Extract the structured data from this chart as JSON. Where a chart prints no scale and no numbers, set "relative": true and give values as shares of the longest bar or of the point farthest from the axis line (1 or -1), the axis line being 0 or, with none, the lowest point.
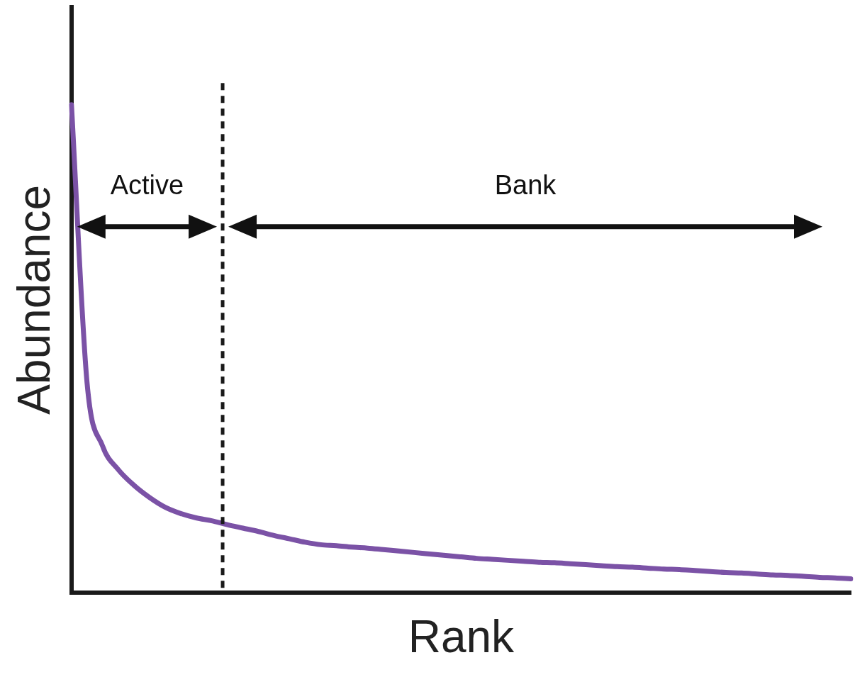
{
  "chart_data": {
    "type": "line",
    "relative": true,
    "xlabel": "Rank",
    "ylabel": "Abundance",
    "categories": [
      null,
      null,
      null,
      null,
      null,
      null,
      null,
      null,
      null,
      null,
      null,
      null,
      null,
      null,
      null,
      null,
      null,
      null,
      null,
      null,
      null,
      null,
      null,
      null,
      null,
      null,
      null,
      null,
      null,
      null,
      null,
      null,
      null,
      null,
      null,
      null,
      null,
      null,
      null,
      null,
      null,
      null,
      null,
      null,
      null,
      null,
      null,
      null,
      null,
      null,
      null
    ],
    "series": [
      {
        "color": "#7b52a6",
        "values": [
          1.0,
          0.43,
          0.3,
          0.252,
          0.22,
          0.195,
          0.175,
          0.162,
          0.153,
          0.147,
          0.139,
          0.132,
          0.125,
          0.117,
          0.11,
          0.103,
          0.098,
          0.096,
          0.093,
          0.091,
          0.088,
          0.085,
          0.082,
          0.079,
          0.076,
          0.073,
          0.07,
          0.068,
          0.066,
          0.064,
          0.062,
          0.061,
          0.059,
          0.057,
          0.055,
          0.053,
          0.052,
          0.05,
          0.048,
          0.047,
          0.045,
          0.043,
          0.041,
          0.04,
          0.038,
          0.036,
          0.035,
          0.033,
          0.031,
          0.03,
          0.028
        ]
      }
    ],
    "annotations": [
      "Active",
      "Bank"
    ],
    "marker": "none",
    "line_style": "solid",
    "grid": false,
    "legend": false
  }
}
